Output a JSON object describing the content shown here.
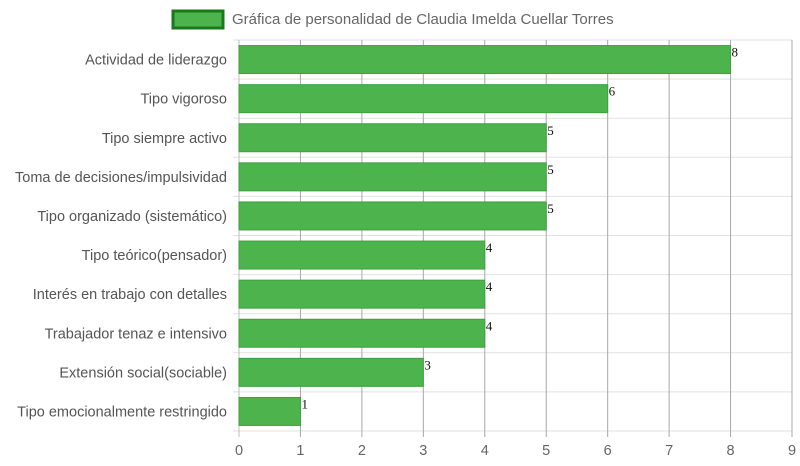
{
  "chart_data": {
    "type": "bar",
    "orientation": "horizontal",
    "categories": [
      "Actividad de liderazgo",
      "Tipo vigoroso",
      "Tipo siempre activo",
      "Toma de decisiones/impulsividad",
      "Tipo organizado (sistemático)",
      "Tipo teórico(pensador)",
      "Interés en trabajo con detalles",
      "Trabajador tenaz e intensivo",
      "Extensión social(sociable)",
      "Tipo emocionalmente restringido"
    ],
    "series": [
      {
        "name": "Gráfica de personalidad de Claudia Imelda Cuellar Torres",
        "values": [
          8,
          6,
          5,
          5,
          5,
          4,
          4,
          4,
          3,
          1
        ]
      }
    ],
    "xticks": [
      0,
      1,
      2,
      3,
      4,
      5,
      6,
      7,
      8,
      9
    ],
    "xlim": [
      0,
      9
    ],
    "grid": true,
    "legend": "top",
    "colors": {
      "bar_fill": "#4db34d",
      "bar_stroke": "#3f9f3f",
      "legend_stroke": "#1a7a1a"
    }
  }
}
